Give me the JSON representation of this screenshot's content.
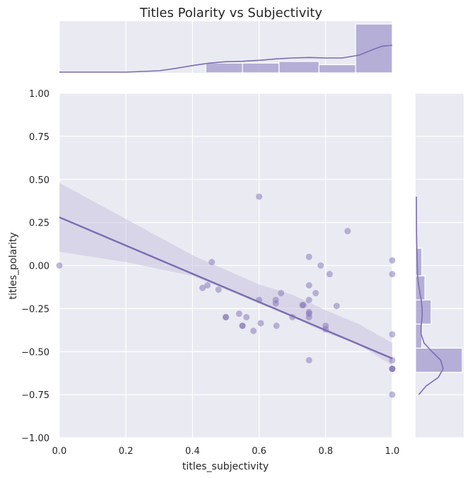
{
  "chart_data": {
    "type": "scatter",
    "title": "Titles Polarity vs Subjectivity",
    "xlabel": "titles_subjectivity",
    "ylabel": "titles_polarity",
    "xlim": [
      0,
      1
    ],
    "ylim": [
      -1,
      1
    ],
    "x_ticks": [
      "0.0",
      "0.2",
      "0.4",
      "0.6",
      "0.8",
      "1.0"
    ],
    "y_ticks": [
      "−1.00",
      "−0.75",
      "−0.50",
      "−0.25",
      "0.00",
      "0.25",
      "0.50",
      "0.75",
      "1.00"
    ],
    "grid": true,
    "colors": {
      "points": "#8172b3",
      "line": "#7b6db0",
      "band": "#c9c3e0",
      "hist": "#a89fcf",
      "panel": "#eaeaf2",
      "grid": "#ffffff"
    },
    "points": [
      {
        "x": 0.0,
        "y": 0.0
      },
      {
        "x": 0.43,
        "y": -0.13
      },
      {
        "x": 0.445,
        "y": -0.115
      },
      {
        "x": 0.458,
        "y": 0.02
      },
      {
        "x": 0.478,
        "y": -0.14
      },
      {
        "x": 0.5,
        "y": -0.3
      },
      {
        "x": 0.5,
        "y": -0.3
      },
      {
        "x": 0.54,
        "y": -0.28
      },
      {
        "x": 0.55,
        "y": -0.35
      },
      {
        "x": 0.55,
        "y": -0.35
      },
      {
        "x": 0.562,
        "y": -0.3
      },
      {
        "x": 0.583,
        "y": -0.38
      },
      {
        "x": 0.6,
        "y": -0.2
      },
      {
        "x": 0.6,
        "y": 0.4
      },
      {
        "x": 0.605,
        "y": -0.335
      },
      {
        "x": 0.65,
        "y": -0.2
      },
      {
        "x": 0.65,
        "y": -0.22
      },
      {
        "x": 0.652,
        "y": -0.35
      },
      {
        "x": 0.666,
        "y": -0.16
      },
      {
        "x": 0.7,
        "y": -0.3
      },
      {
        "x": 0.73,
        "y": -0.23
      },
      {
        "x": 0.733,
        "y": -0.23
      },
      {
        "x": 0.75,
        "y": 0.05
      },
      {
        "x": 0.75,
        "y": -0.115
      },
      {
        "x": 0.75,
        "y": -0.2
      },
      {
        "x": 0.75,
        "y": -0.27
      },
      {
        "x": 0.75,
        "y": -0.28
      },
      {
        "x": 0.75,
        "y": -0.3
      },
      {
        "x": 0.75,
        "y": -0.55
      },
      {
        "x": 0.77,
        "y": -0.16
      },
      {
        "x": 0.785,
        "y": 0.0
      },
      {
        "x": 0.8,
        "y": -0.35
      },
      {
        "x": 0.8,
        "y": -0.37
      },
      {
        "x": 0.812,
        "y": -0.05
      },
      {
        "x": 0.833,
        "y": -0.235
      },
      {
        "x": 0.866,
        "y": 0.2
      },
      {
        "x": 1.0,
        "y": 0.03
      },
      {
        "x": 1.0,
        "y": -0.05
      },
      {
        "x": 1.0,
        "y": -0.4
      },
      {
        "x": 1.0,
        "y": -0.55
      },
      {
        "x": 1.0,
        "y": -0.6
      },
      {
        "x": 1.0,
        "y": -0.6
      },
      {
        "x": 1.0,
        "y": -0.6
      },
      {
        "x": 1.0,
        "y": -0.75
      }
    ],
    "regression": {
      "intercept": 0.28,
      "slope": -0.82
    },
    "band": {
      "x": [
        0.0,
        0.2,
        0.4,
        0.6,
        0.7,
        0.8,
        0.9,
        1.0
      ],
      "lower": [
        0.08,
        0.02,
        -0.06,
        -0.22,
        -0.3,
        -0.39,
        -0.46,
        -0.58
      ],
      "upper": [
        0.48,
        0.27,
        0.06,
        -0.11,
        -0.17,
        -0.26,
        -0.34,
        -0.45
      ]
    },
    "top_hist": {
      "edges": [
        0.44,
        0.55,
        0.66,
        0.78,
        0.89,
        1.0
      ],
      "counts": [
        6,
        6,
        7,
        5,
        30
      ]
    },
    "top_kde": {
      "x": [
        0.0,
        0.1,
        0.2,
        0.3,
        0.35,
        0.4,
        0.45,
        0.5,
        0.55,
        0.6,
        0.65,
        0.7,
        0.75,
        0.8,
        0.85,
        0.9,
        0.95,
        0.97,
        1.0
      ],
      "density": [
        0.0,
        0.0,
        0.0,
        0.03,
        0.08,
        0.14,
        0.19,
        0.22,
        0.23,
        0.25,
        0.28,
        0.3,
        0.31,
        0.3,
        0.3,
        0.36,
        0.5,
        0.55,
        0.57
      ]
    },
    "right_hist": {
      "edges": [
        -0.62,
        -0.48,
        -0.34,
        -0.2,
        -0.06,
        0.1
      ],
      "counts": [
        15,
        2,
        5,
        3,
        2
      ]
    },
    "right_kde": {
      "y": [
        -0.75,
        -0.7,
        -0.65,
        -0.6,
        -0.55,
        -0.5,
        -0.45,
        -0.4,
        -0.35,
        -0.3,
        -0.25,
        -0.2,
        -0.15,
        -0.1,
        -0.05,
        0.0,
        0.05,
        0.1,
        0.2,
        0.3,
        0.4
      ],
      "density": [
        0.05,
        0.2,
        0.45,
        0.55,
        0.5,
        0.32,
        0.16,
        0.1,
        0.1,
        0.12,
        0.12,
        0.1,
        0.07,
        0.04,
        0.025,
        0.02,
        0.015,
        0.01,
        0.005,
        0.003,
        0.002
      ]
    }
  }
}
